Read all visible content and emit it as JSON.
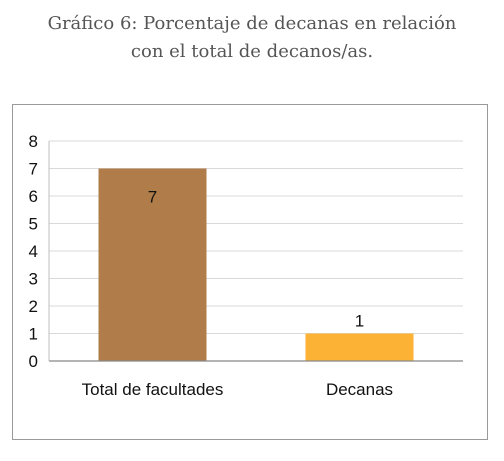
{
  "chart_data": {
    "type": "bar",
    "title_line1": "Gráfico 6: Porcentaje de decanas en relación",
    "title_line2": "con el total de decanos/as.",
    "categories": [
      "Total de facultades",
      "Decanas"
    ],
    "values": [
      7,
      1
    ],
    "data_labels": [
      "7",
      "1"
    ],
    "bar_colors": [
      "#b07d4a",
      "#fbb235"
    ],
    "ylim": [
      0,
      8
    ],
    "yticks": [
      "0",
      "1",
      "2",
      "3",
      "4",
      "5",
      "6",
      "7",
      "8"
    ],
    "grid": true,
    "legend": "none",
    "xlabel": "",
    "ylabel": ""
  }
}
